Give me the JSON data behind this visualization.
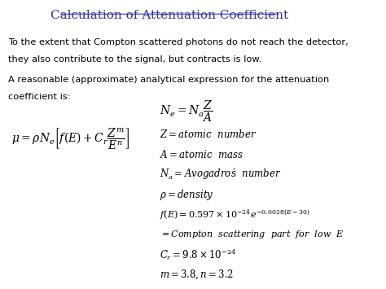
{
  "title": "Calculation of Attenuation Coefficient",
  "title_color": "#3333aa",
  "title_fontsize": 11,
  "text1": "To the extent that Compton scattered photons do not reach the detector,",
  "text2": "they also contribute to the signal, but contracts is low.",
  "text3": "A reasonable (approximate) analytical expression for the attenuation",
  "text4": "coefficient is:"
}
